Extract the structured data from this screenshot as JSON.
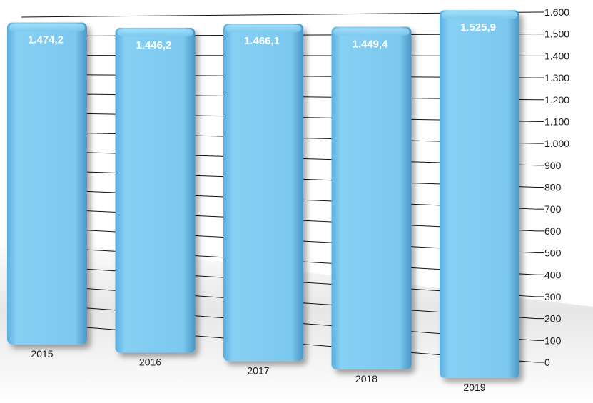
{
  "chart_data": {
    "type": "bar",
    "title": "",
    "xlabel": "",
    "ylabel": "",
    "categories": [
      "2015",
      "2016",
      "2017",
      "2018",
      "2019"
    ],
    "values": [
      1474.2,
      1446.2,
      1466.1,
      1449.4,
      1525.9
    ],
    "value_labels": [
      "1.474,2",
      "1.446,2",
      "1.466,1",
      "1.449,4",
      "1.525,9"
    ],
    "ylim": [
      0,
      1600
    ],
    "yticks": [
      0,
      100,
      200,
      300,
      400,
      500,
      600,
      700,
      800,
      900,
      1000,
      1100,
      1200,
      1300,
      1400,
      1500,
      1600
    ],
    "ytick_labels": [
      "0",
      "100",
      "200",
      "300",
      "400",
      "500",
      "600",
      "700",
      "800",
      "900",
      "1.000",
      "1.100",
      "1.200",
      "1.300",
      "1.400",
      "1.500",
      "1.600"
    ],
    "y_axis_side": "right",
    "grid": true,
    "legend": "none",
    "colors": {
      "bar": "#7cc8ee",
      "bar_edge": "#4a97c7",
      "grid": "#111111",
      "text": "#1a1a1a",
      "label": "#ffffff"
    }
  }
}
